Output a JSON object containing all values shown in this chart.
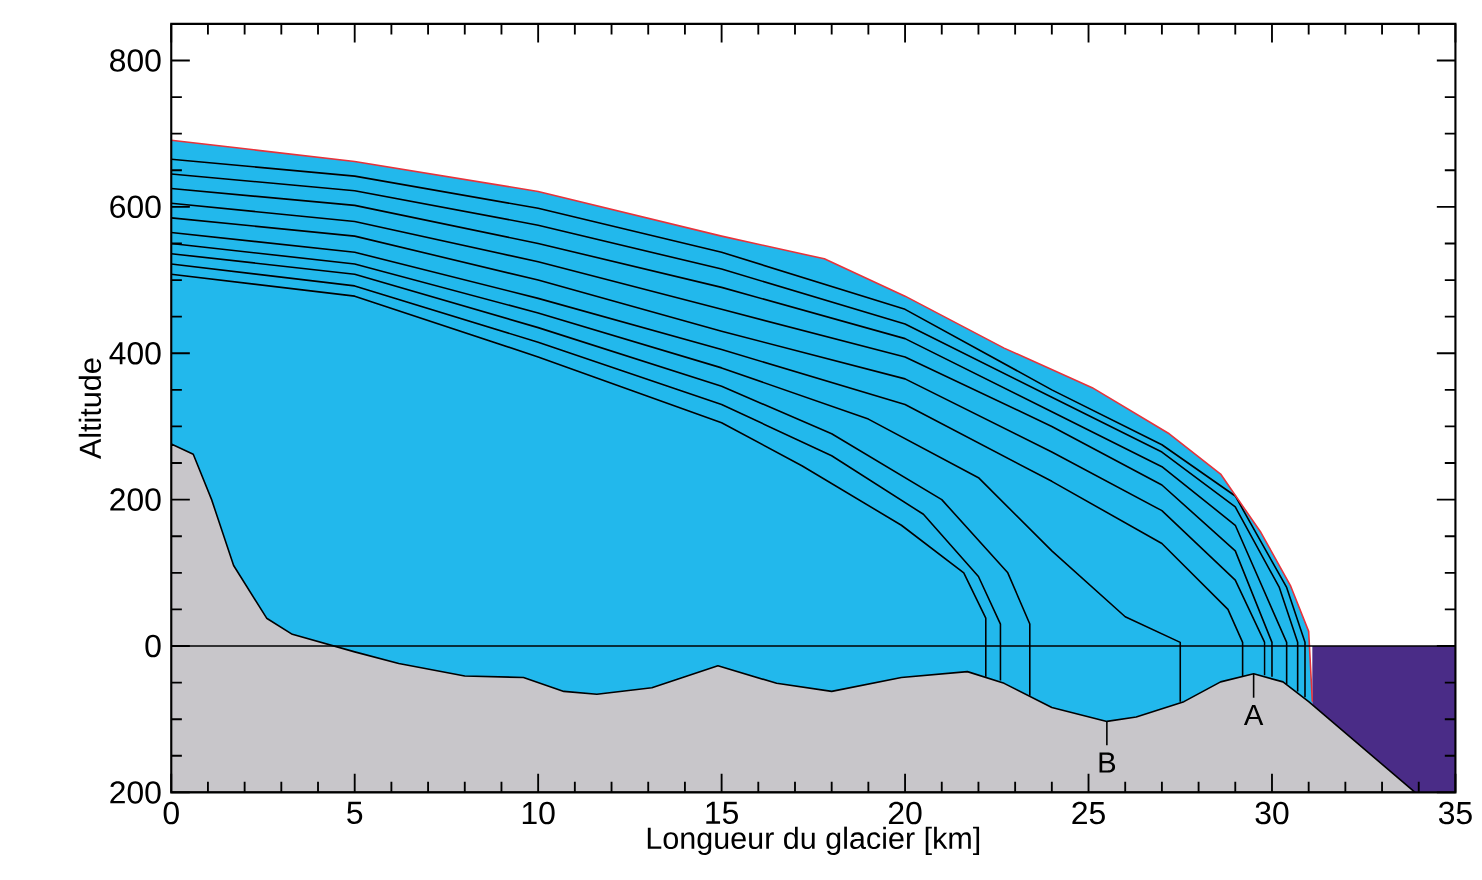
{
  "chart_data": {
    "type": "area",
    "xlabel": "Longueur du glacier [km]",
    "ylabel": "Altitude",
    "xlim": [
      0,
      35
    ],
    "ylim": [
      -200,
      850
    ],
    "xticks": [
      0,
      5,
      10,
      15,
      20,
      25,
      30,
      35
    ],
    "yticks": [
      {
        "value": -200,
        "label": "200"
      },
      0,
      200,
      400,
      600,
      800
    ],
    "grid": false,
    "marker": "none",
    "ref_lines": [
      {
        "axis": "y",
        "value": 0,
        "color": "#000000"
      }
    ],
    "annotations": [
      {
        "text": "A",
        "x": 29.5,
        "y": -38
      },
      {
        "text": "B",
        "x": 25.5,
        "y": -103
      }
    ],
    "series": [
      {
        "color": "#22b8ec",
        "x": [
          0,
          5,
          10,
          15,
          17.8,
          20,
          22.7,
          25.1,
          27.2,
          28.6,
          29.7,
          30.5,
          31,
          31.1,
          31.1,
          0
        ],
        "values": [
          691,
          662,
          621,
          560,
          529,
          478,
          407,
          353,
          290,
          235,
          155,
          83,
          20,
          -76,
          -200,
          -200
        ]
      },
      {
        "color": "#4a2c87",
        "x": [
          31.1,
          35,
          35,
          31.1
        ],
        "values": [
          0,
          0,
          -200,
          -200
        ]
      },
      {
        "color": "#c8c6ca",
        "x": [
          0,
          0.6,
          1.1,
          1.7,
          2.6,
          3.3,
          5,
          6.2,
          8,
          9.6,
          10.7,
          11.6,
          13.1,
          14.9,
          16.5,
          18,
          19.9,
          21.7,
          22.7,
          24,
          25.5,
          26.3,
          27.6,
          28.6,
          29.5,
          30.3,
          31,
          33.9,
          0
        ],
        "values": [
          276,
          262,
          200,
          110,
          38,
          16,
          -8,
          -24,
          -41,
          -43,
          -62,
          -66,
          -57,
          -27,
          -51,
          -62,
          -43,
          -35,
          -51,
          -84,
          -103,
          -97,
          -76,
          -49,
          -38,
          -49,
          -76,
          -200,
          -200
        ]
      },
      {
        "type": "line",
        "color": "#000000",
        "x": [
          0,
          5,
          10,
          15,
          17.2,
          19.9,
          21.6,
          22.2,
          22.2
        ],
        "values": [
          508,
          478,
          395,
          305,
          246,
          165,
          100,
          38,
          -42
        ]
      },
      {
        "type": "line",
        "color": "#000000",
        "x": [
          0,
          5,
          10,
          15,
          18,
          20.5,
          22,
          22.6,
          22.6
        ],
        "values": [
          522,
          492,
          415,
          330,
          260,
          180,
          95,
          30,
          -47
        ]
      },
      {
        "type": "line",
        "color": "#000000",
        "x": [
          0,
          5,
          10,
          15,
          18,
          21,
          22.8,
          23.4,
          23.4
        ],
        "values": [
          536,
          508,
          435,
          355,
          290,
          200,
          100,
          30,
          -68
        ]
      },
      {
        "type": "line",
        "color": "#000000",
        "x": [
          0,
          5,
          10,
          15,
          19,
          22,
          24,
          26,
          27.5,
          27.5
        ],
        "values": [
          550,
          522,
          455,
          380,
          310,
          230,
          130,
          40,
          5,
          -76
        ]
      },
      {
        "type": "line",
        "color": "#000000",
        "x": [
          0,
          5,
          10,
          15,
          20,
          24,
          27,
          28.8,
          29.2,
          29.2
        ],
        "values": [
          565,
          538,
          475,
          405,
          330,
          225,
          140,
          50,
          5,
          -41
        ]
      },
      {
        "type": "line",
        "color": "#000000",
        "x": [
          0,
          5,
          10,
          15,
          20,
          24,
          27,
          29,
          29.8,
          29.8
        ],
        "values": [
          585,
          560,
          500,
          430,
          365,
          265,
          185,
          90,
          5,
          -40
        ]
      },
      {
        "type": "line",
        "color": "#000000",
        "x": [
          0,
          5,
          10,
          15,
          20,
          24,
          27,
          29,
          30,
          30
        ],
        "values": [
          605,
          580,
          525,
          460,
          395,
          300,
          220,
          130,
          5,
          -42
        ]
      },
      {
        "type": "line",
        "color": "#000000",
        "x": [
          0,
          5,
          10,
          15,
          20,
          24,
          27,
          29,
          30.4,
          30.4
        ],
        "values": [
          625,
          602,
          550,
          490,
          420,
          320,
          245,
          165,
          5,
          -52
        ]
      },
      {
        "type": "line",
        "color": "#000000",
        "x": [
          0,
          5,
          10,
          15,
          20,
          24,
          27,
          29,
          30.2,
          30.7,
          30.7
        ],
        "values": [
          645,
          622,
          575,
          515,
          440,
          340,
          265,
          190,
          80,
          5,
          -62
        ]
      },
      {
        "type": "line",
        "color": "#000000",
        "x": [
          0,
          5,
          10,
          15,
          20,
          24,
          27,
          29,
          30.4,
          30.9,
          30.9
        ],
        "values": [
          665,
          642,
          598,
          538,
          460,
          350,
          275,
          205,
          80,
          5,
          -70
        ]
      },
      {
        "type": "line",
        "color": "#e8333a",
        "x": [
          0,
          5,
          10,
          15,
          17.8,
          20,
          22.7,
          25.1,
          27.2,
          28.6,
          29.7,
          30.5,
          31,
          31.1
        ],
        "values": [
          691,
          662,
          621,
          560,
          529,
          478,
          407,
          353,
          290,
          235,
          155,
          83,
          20,
          -76
        ]
      }
    ]
  }
}
